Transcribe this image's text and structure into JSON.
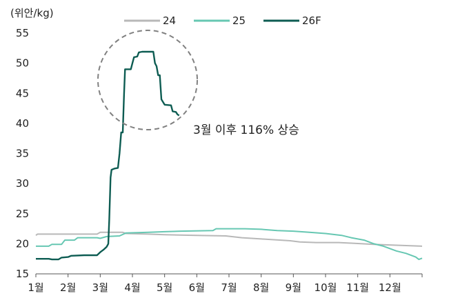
{
  "chart_data": {
    "type": "line",
    "unit_label": "(위안/kg)",
    "x_ticks": [
      "1월",
      "2월",
      "3월",
      "4월",
      "5월",
      "6월",
      "7월",
      "8월",
      "9월",
      "10월",
      "11월",
      "12월"
    ],
    "xlim": [
      1,
      13
    ],
    "ylim": [
      15,
      55
    ],
    "y_ticks": [
      15,
      20,
      25,
      30,
      35,
      40,
      45,
      50,
      55
    ],
    "grid": false,
    "legend_position": "top",
    "series": [
      {
        "name": "24",
        "color": "#b8b8b8",
        "points": [
          [
            1.0,
            21.4
          ],
          [
            1.05,
            21.6
          ],
          [
            2.0,
            21.6
          ],
          [
            2.9,
            21.6
          ],
          [
            3.0,
            21.9
          ],
          [
            3.7,
            21.9
          ],
          [
            3.8,
            21.7
          ],
          [
            4.5,
            21.6
          ],
          [
            5.0,
            21.5
          ],
          [
            6.0,
            21.4
          ],
          [
            6.9,
            21.3
          ],
          [
            7.4,
            21.0
          ],
          [
            8.0,
            20.8
          ],
          [
            8.9,
            20.5
          ],
          [
            9.2,
            20.3
          ],
          [
            9.7,
            20.2
          ],
          [
            10.0,
            20.2
          ],
          [
            10.4,
            20.2
          ],
          [
            10.8,
            20.1
          ],
          [
            11.5,
            19.9
          ],
          [
            12.0,
            19.8
          ],
          [
            12.5,
            19.7
          ],
          [
            13.0,
            19.6
          ]
        ]
      },
      {
        "name": "25",
        "color": "#66c7b2",
        "points": [
          [
            1.0,
            19.6
          ],
          [
            1.4,
            19.6
          ],
          [
            1.5,
            19.9
          ],
          [
            1.8,
            19.9
          ],
          [
            1.9,
            20.6
          ],
          [
            2.2,
            20.6
          ],
          [
            2.3,
            21.0
          ],
          [
            2.9,
            21.0
          ],
          [
            3.0,
            20.9
          ],
          [
            3.2,
            21.2
          ],
          [
            3.6,
            21.3
          ],
          [
            3.8,
            21.8
          ],
          [
            4.5,
            21.9
          ],
          [
            5.0,
            22.0
          ],
          [
            5.5,
            22.1
          ],
          [
            6.5,
            22.2
          ],
          [
            6.6,
            22.5
          ],
          [
            7.5,
            22.5
          ],
          [
            8.0,
            22.4
          ],
          [
            8.5,
            22.2
          ],
          [
            9.0,
            22.1
          ],
          [
            9.5,
            21.9
          ],
          [
            10.0,
            21.7
          ],
          [
            10.5,
            21.4
          ],
          [
            10.8,
            21.0
          ],
          [
            11.2,
            20.6
          ],
          [
            11.5,
            20.0
          ],
          [
            11.8,
            19.6
          ],
          [
            12.2,
            18.8
          ],
          [
            12.5,
            18.4
          ],
          [
            12.8,
            17.8
          ],
          [
            12.9,
            17.4
          ],
          [
            13.0,
            17.6
          ]
        ]
      },
      {
        "name": "26F",
        "color": "#0d5c52",
        "points": [
          [
            1.0,
            17.5
          ],
          [
            1.4,
            17.5
          ],
          [
            1.5,
            17.4
          ],
          [
            1.7,
            17.4
          ],
          [
            1.8,
            17.7
          ],
          [
            2.0,
            17.8
          ],
          [
            2.1,
            18.0
          ],
          [
            2.5,
            18.1
          ],
          [
            2.9,
            18.1
          ],
          [
            3.0,
            18.6
          ],
          [
            3.1,
            19.0
          ],
          [
            3.2,
            19.5
          ],
          [
            3.25,
            20.0
          ],
          [
            3.28,
            24.0
          ],
          [
            3.32,
            31.0
          ],
          [
            3.35,
            32.3
          ],
          [
            3.45,
            32.5
          ],
          [
            3.55,
            32.6
          ],
          [
            3.6,
            35.0
          ],
          [
            3.65,
            38.5
          ],
          [
            3.7,
            38.5
          ],
          [
            3.74,
            45.0
          ],
          [
            3.77,
            49.0
          ],
          [
            3.95,
            49.0
          ],
          [
            4.0,
            50.0
          ],
          [
            4.05,
            51.0
          ],
          [
            4.15,
            51.1
          ],
          [
            4.2,
            51.8
          ],
          [
            4.3,
            51.9
          ],
          [
            4.65,
            51.9
          ],
          [
            4.7,
            50.0
          ],
          [
            4.75,
            49.5
          ],
          [
            4.8,
            48.0
          ],
          [
            4.85,
            48.0
          ],
          [
            4.9,
            44.0
          ],
          [
            5.0,
            43.1
          ],
          [
            5.2,
            43.0
          ],
          [
            5.25,
            42.0
          ],
          [
            5.35,
            41.9
          ],
          [
            5.4,
            41.5
          ],
          [
            5.45,
            41.3
          ]
        ]
      }
    ],
    "annotations": [
      {
        "text": "3월 이후 116% 상승",
        "type": "text"
      },
      {
        "type": "dashed-circle",
        "color": "#808080"
      }
    ]
  }
}
